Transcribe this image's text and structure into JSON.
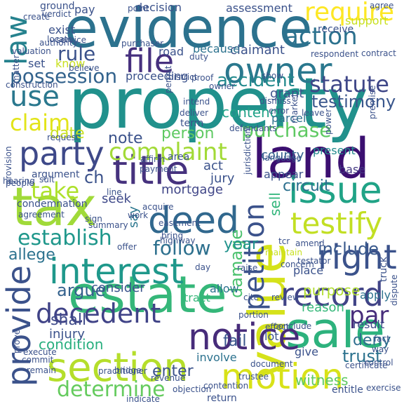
{
  "word_cloud": {
    "palette": [
      "#440154",
      "#3b528b",
      "#21918c",
      "#5ec962",
      "#fde725"
    ],
    "words": [
      {
        "text": "property",
        "color": "#21918c"
      },
      {
        "text": "evidence",
        "color": "#2c728e"
      },
      {
        "text": "tax",
        "color": "#a0da39"
      },
      {
        "text": "land",
        "color": "#3b0f70"
      },
      {
        "text": "title",
        "color": "#46327e"
      },
      {
        "text": "estate",
        "color": "#35b779"
      },
      {
        "text": "value",
        "color": "#d5e21a"
      },
      {
        "text": "section",
        "color": "#b5de2b"
      },
      {
        "text": "interest",
        "color": "#1f988b"
      },
      {
        "text": "sale",
        "color": "#2db27d"
      },
      {
        "text": "deed",
        "color": "#31688e"
      },
      {
        "text": "notice",
        "color": "#472c7a"
      },
      {
        "text": "owner",
        "color": "#2a788e"
      },
      {
        "text": "issue",
        "color": "#20a386"
      },
      {
        "text": "motion",
        "color": "#d8e219"
      },
      {
        "text": "record",
        "color": "#414487"
      },
      {
        "text": "file",
        "color": "#46307e"
      },
      {
        "text": "party",
        "color": "#3e4989"
      },
      {
        "text": "right",
        "color": "#3b528b"
      },
      {
        "text": "provide",
        "color": "#3b528b"
      },
      {
        "text": "use",
        "color": "#2a788e"
      },
      {
        "text": "testify",
        "color": "#c2df23"
      },
      {
        "text": "decedent",
        "color": "#404387"
      },
      {
        "text": "complaint",
        "color": "#a2da37"
      },
      {
        "text": "petition",
        "color": "#3b528b"
      },
      {
        "text": "law",
        "color": "#26828e"
      },
      {
        "text": "statute",
        "color": "#3f4788"
      },
      {
        "text": "require",
        "color": "#fde725"
      },
      {
        "text": "action",
        "color": "#2c728e"
      },
      {
        "text": "possession",
        "color": "#33638d"
      },
      {
        "text": "determine",
        "color": "#65cb5e"
      },
      {
        "text": "establish",
        "color": "#1f978b"
      },
      {
        "text": "follow",
        "color": "#2d708e"
      },
      {
        "text": "take",
        "color": "#ade12b"
      },
      {
        "text": "claim",
        "color": "#e2e418"
      },
      {
        "text": "purchase",
        "color": "#5ec962"
      },
      {
        "text": "accident",
        "color": "#238a8d"
      },
      {
        "text": "rule",
        "color": "#3b528b"
      },
      {
        "text": "include",
        "color": "#38588c"
      },
      {
        "text": "testimony",
        "color": "#39568c"
      },
      {
        "text": "damage",
        "color": "#4ac16d"
      },
      {
        "text": "argue",
        "color": "#34618d"
      },
      {
        "text": "par",
        "color": "#472d7b"
      },
      {
        "text": "year",
        "color": "#20928c"
      },
      {
        "text": "circuit",
        "color": "#2d708e"
      },
      {
        "text": "note",
        "color": "#3b528b"
      },
      {
        "text": "allege",
        "color": "#2c728e"
      },
      {
        "text": "fail",
        "color": "#39568c"
      },
      {
        "text": "ch",
        "color": "#3b528b"
      },
      {
        "text": "shall",
        "color": "#3e4a89"
      },
      {
        "text": "trust",
        "color": "#2c728e"
      },
      {
        "text": "enter",
        "color": "#3b528b"
      },
      {
        "text": "date",
        "color": "#c8e020"
      },
      {
        "text": "sell",
        "color": "#31b57b"
      },
      {
        "text": "person",
        "color": "#5ec962"
      },
      {
        "text": "condition",
        "color": "#29af7f"
      },
      {
        "text": "injury",
        "color": "#3b528b"
      },
      {
        "text": "mortgage",
        "color": "#404688"
      },
      {
        "text": "consider",
        "color": "#3a548c"
      },
      {
        "text": "purpose",
        "color": "#b0dd2f"
      },
      {
        "text": "deny",
        "color": "#2e6e8e"
      },
      {
        "text": "seek",
        "color": "#3e4989"
      },
      {
        "text": "say",
        "color": "#2a768e"
      },
      {
        "text": "jury",
        "color": "#3b528b"
      },
      {
        "text": "act",
        "color": "#3b528b"
      },
      {
        "text": "county",
        "color": "#33638d"
      },
      {
        "text": "base",
        "color": "#443983"
      },
      {
        "text": "present",
        "color": "#238a8d"
      },
      {
        "text": "contend",
        "color": "#1fa187"
      },
      {
        "text": "parcel",
        "color": "#2d708e"
      },
      {
        "text": "grant",
        "color": "#3b528b"
      },
      {
        "text": "reason",
        "color": "#35b779"
      },
      {
        "text": "result",
        "color": "#3e4989"
      },
      {
        "text": "apply",
        "color": "#2c728e"
      },
      {
        "text": "give",
        "color": "#3b528b"
      },
      {
        "text": "witness",
        "color": "#5ec962"
      },
      {
        "text": "involve",
        "color": "#2c728e"
      },
      {
        "text": "lot",
        "color": "#3b528b"
      },
      {
        "text": "tract",
        "color": "#35b779"
      },
      {
        "text": "allow",
        "color": "#2c728e"
      },
      {
        "text": "place",
        "color": "#3b528b"
      },
      {
        "text": "appear",
        "color": "#3b528b"
      },
      {
        "text": "proceeding",
        "color": "#3b528b"
      },
      {
        "text": "claimant",
        "color": "#3b528b"
      },
      {
        "text": "road",
        "color": "#3b528b"
      },
      {
        "text": "because",
        "color": "#2c728e"
      },
      {
        "text": "assessment",
        "color": "#3b528b"
      },
      {
        "text": "decision",
        "color": "#3b528b"
      },
      {
        "text": "pay",
        "color": "#3b528b"
      },
      {
        "text": "know",
        "color": "#c8e020"
      },
      {
        "text": "set",
        "color": "#3b528b"
      },
      {
        "text": "exist",
        "color": "#3b528b"
      },
      {
        "text": "ground",
        "color": "#3b528b"
      },
      {
        "text": "agree",
        "color": "#3b528b"
      },
      {
        "text": "support",
        "color": "#c8e020"
      },
      {
        "text": "receive",
        "color": "#3b528b"
      },
      {
        "text": "contract",
        "color": "#3b528b"
      },
      {
        "text": "respondent",
        "color": "#3b528b"
      },
      {
        "text": "show",
        "color": "#3b528b"
      },
      {
        "text": "argument",
        "color": "#3b528b"
      },
      {
        "text": "provision",
        "color": "#3b528b"
      },
      {
        "text": "condemnation",
        "color": "#3b528b"
      },
      {
        "text": "line",
        "color": "#3b528b"
      },
      {
        "text": "sign",
        "color": "#3b528b"
      },
      {
        "text": "offer",
        "color": "#3b528b"
      },
      {
        "text": "affirm",
        "color": "#3b528b"
      },
      {
        "text": "area",
        "color": "#3b528b"
      },
      {
        "text": "term",
        "color": "#3b528b"
      },
      {
        "text": "deliver",
        "color": "#3b528b"
      },
      {
        "text": "intend",
        "color": "#3b528b"
      },
      {
        "text": "acquire",
        "color": "#3b528b"
      },
      {
        "text": "raise",
        "color": "#3b528b"
      },
      {
        "text": "day",
        "color": "#3b528b"
      },
      {
        "text": "review",
        "color": "#3b528b"
      },
      {
        "text": "cite",
        "color": "#3b528b"
      },
      {
        "text": "portion",
        "color": "#3b528b"
      },
      {
        "text": "conclude",
        "color": "#3b528b"
      },
      {
        "text": "concern",
        "color": "#3b528b"
      },
      {
        "text": "maintain",
        "color": "#c8e020"
      },
      {
        "text": "amend",
        "color": "#3b528b"
      },
      {
        "text": "testator",
        "color": "#3b528b"
      },
      {
        "text": "certificate",
        "color": "#3b528b"
      },
      {
        "text": "truck",
        "color": "#3b528b"
      },
      {
        "text": "dispute",
        "color": "#3b528b"
      },
      {
        "text": "control",
        "color": "#3b528b"
      },
      {
        "text": "entitle",
        "color": "#3b528b"
      },
      {
        "text": "objection",
        "color": "#3b528b"
      },
      {
        "text": "return",
        "color": "#3b528b"
      },
      {
        "text": "indicate",
        "color": "#3b528b"
      },
      {
        "text": "prove",
        "color": "#3b528b"
      },
      {
        "text": "summary",
        "color": "#3b528b"
      },
      {
        "text": "highway",
        "color": "#3b528b"
      },
      {
        "text": "matter",
        "color": "#3b528b"
      },
      {
        "text": "valuation",
        "color": "#3b528b"
      },
      {
        "text": "construction",
        "color": "#3b528b"
      },
      {
        "text": "service",
        "color": "#3b528b"
      },
      {
        "text": "purchaser",
        "color": "#3b528b"
      },
      {
        "text": "authority",
        "color": "#3b528b"
      },
      {
        "text": "permit",
        "color": "#3b528b"
      },
      {
        "text": "duty",
        "color": "#3b528b"
      },
      {
        "text": "believe",
        "color": "#3b528b"
      },
      {
        "text": "district",
        "color": "#3b528b"
      },
      {
        "text": "dismiss",
        "color": "#3b528b"
      },
      {
        "text": "market",
        "color": "#3b528b"
      },
      {
        "text": "defendants'",
        "color": "#3b528b"
      },
      {
        "text": "premise",
        "color": "#3b528b"
      },
      {
        "text": "power",
        "color": "#3b528b"
      },
      {
        "text": "error",
        "color": "#3b528b"
      },
      {
        "text": "hearing",
        "color": "#3b528b"
      },
      {
        "text": "request",
        "color": "#3b528b"
      },
      {
        "text": "people",
        "color": "#3b528b"
      },
      {
        "text": "language",
        "color": "#3b528b"
      },
      {
        "text": "payment",
        "color": "#3b528b"
      },
      {
        "text": "point",
        "color": "#3b528b"
      },
      {
        "text": "verdict",
        "color": "#3b528b"
      },
      {
        "text": "create",
        "color": "#3b528b"
      },
      {
        "text": "locate",
        "color": "#3b528b"
      },
      {
        "text": "proof",
        "color": "#3b528b"
      },
      {
        "text": "jurisdiction",
        "color": "#3b528b"
      },
      {
        "text": "leave",
        "color": "#3b528b"
      },
      {
        "text": "work",
        "color": "#3b528b"
      },
      {
        "text": "suit",
        "color": "#3b528b"
      },
      {
        "text": "agreement",
        "color": "#3b528b"
      },
      {
        "text": "bridge",
        "color": "#3b528b"
      },
      {
        "text": "revenue",
        "color": "#3b528b"
      },
      {
        "text": "document",
        "color": "#3b528b"
      },
      {
        "text": "trustee",
        "color": "#3b528b"
      },
      {
        "text": "exercise",
        "color": "#3b528b"
      },
      {
        "text": "remain",
        "color": "#3b528b"
      },
      {
        "text": "execute",
        "color": "#3b528b"
      },
      {
        "text": "commit",
        "color": "#3b528b"
      },
      {
        "text": "effect",
        "color": "#3b528b"
      },
      {
        "text": "practitioner",
        "color": "#3b528b"
      },
      {
        "text": "contention",
        "color": "#3b528b"
      },
      {
        "text": "way",
        "color": "#3b528b"
      },
      {
        "text": "fact",
        "color": "#3b528b"
      },
      {
        "text": "owner",
        "color": "#3b528b"
      },
      {
        "text": "easement",
        "color": "#3b528b"
      },
      {
        "text": "bring",
        "color": "#3b528b"
      },
      {
        "text": "tcr",
        "color": "#3b528b"
      }
    ]
  }
}
